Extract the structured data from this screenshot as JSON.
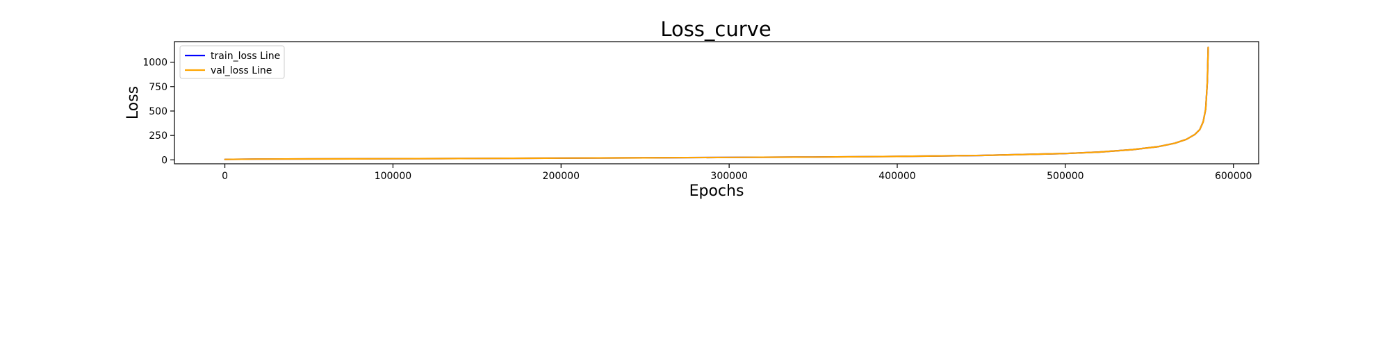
{
  "chart_data": {
    "type": "line",
    "title": "Loss_curve",
    "xlabel": "Epochs",
    "ylabel": "Loss",
    "xlim": [
      -30000,
      615000
    ],
    "ylim": [
      -40,
      1210
    ],
    "xticks": [
      0,
      100000,
      200000,
      300000,
      400000,
      500000,
      600000
    ],
    "xtick_labels": [
      "0",
      "100000",
      "200000",
      "300000",
      "400000",
      "500000",
      "600000"
    ],
    "yticks": [
      0,
      250,
      500,
      750,
      1000
    ],
    "ytick_labels": [
      "0",
      "250",
      "500",
      "750",
      "1000"
    ],
    "grid": false,
    "legend_position": "top-left",
    "series": [
      {
        "name": "train_loss Line",
        "color": "#0000ff",
        "x": [
          0,
          20000,
          50000,
          100000,
          150000,
          200000,
          250000,
          300000,
          350000,
          400000,
          450000,
          500000,
          520000,
          540000,
          555000,
          565000,
          572000,
          577000,
          580000,
          582000,
          583500,
          584500,
          585000
        ],
        "y": [
          5,
          8,
          10,
          12,
          15,
          18,
          21,
          25,
          29,
          35,
          45,
          65,
          80,
          105,
          135,
          170,
          210,
          260,
          310,
          390,
          520,
          800,
          1150
        ]
      },
      {
        "name": "val_loss Line",
        "color": "#ffa500",
        "x": [
          0,
          20000,
          50000,
          100000,
          150000,
          200000,
          250000,
          300000,
          350000,
          400000,
          450000,
          500000,
          520000,
          540000,
          555000,
          565000,
          572000,
          577000,
          580000,
          582000,
          583500,
          584500,
          585000
        ],
        "y": [
          5,
          8,
          10,
          12,
          15,
          18,
          21,
          25,
          29,
          35,
          45,
          65,
          80,
          105,
          135,
          170,
          210,
          260,
          310,
          390,
          520,
          800,
          1150
        ]
      }
    ]
  }
}
